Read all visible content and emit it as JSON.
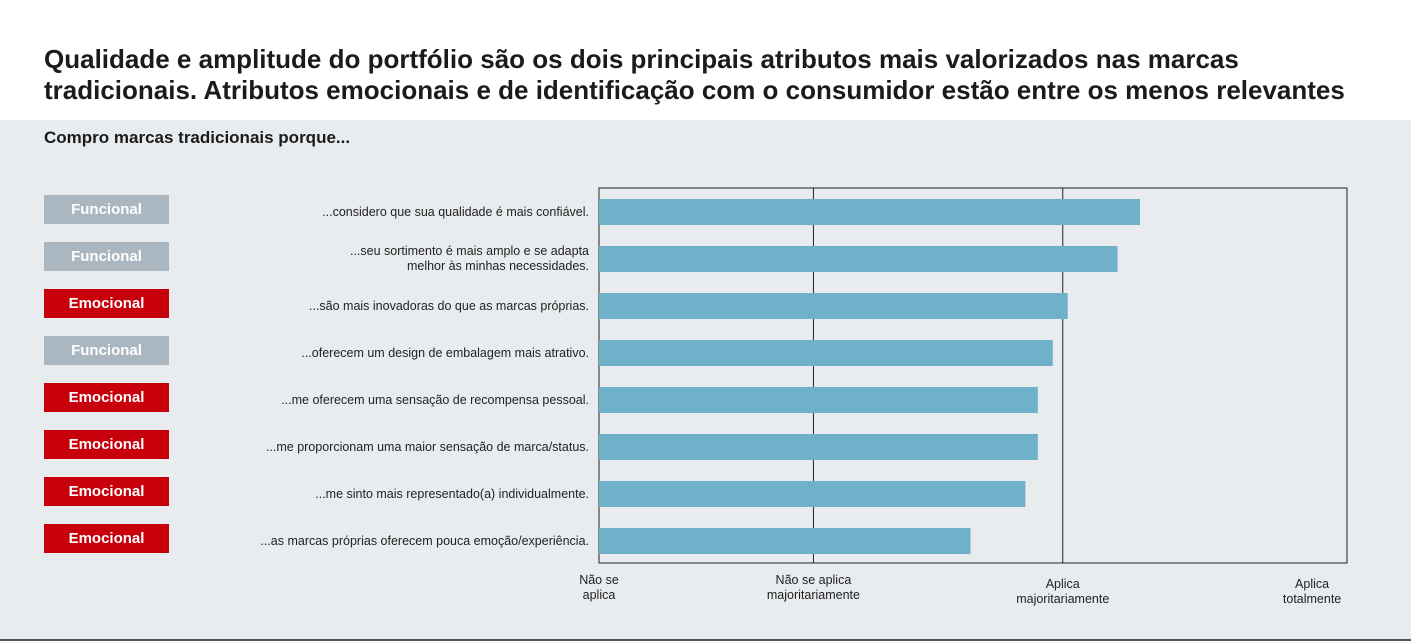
{
  "title_line1": "Qualidade e amplitude do portfólio são os dois principais atributos mais valorizados nas marcas",
  "title_line2": "tradicionais. Atributos emocionais e de identificação com o consumidor estão entre os menos relevantes",
  "colors": {
    "bar": "#6fb1c8",
    "funcional": "#aab7c0",
    "emocional": "#c8000b",
    "panel": "#e9ecef"
  },
  "chart_data": {
    "type": "bar",
    "orientation": "horizontal",
    "title": "Compro marcas tradicionais porque...",
    "categories": [
      "...considero que sua qualidade é mais confiável.",
      "...seu sortimento é mais amplo e se adapta\nmelhor às minhas necessidades.",
      "...são mais inovadoras do que as marcas próprias.",
      "...oferecem um design de embalagem mais atrativo.",
      "...me oferecem uma sensação de recompensa pessoal.",
      "...me proporcionam uma maior sensação de marca/status.",
      "...me sinto mais representado(a) individualmente.",
      "...as marcas próprias oferecem pouca emoção/experiência."
    ],
    "tags": [
      "Funcional",
      "Funcional",
      "Emocional",
      "Funcional",
      "Emocional",
      "Emocional",
      "Emocional",
      "Emocional"
    ],
    "values": [
      2.17,
      2.08,
      1.88,
      1.82,
      1.76,
      1.76,
      1.71,
      1.49
    ],
    "xlim": [
      0,
      3
    ],
    "x_ticks": [
      0,
      0.86,
      1.86,
      2.86
    ],
    "tick_labels": [
      "Não se\naplica",
      "Não se aplica\nmajoritariamente",
      "Aplica\nmajoritariamente",
      "Aplica\ntotalmente"
    ],
    "gridlines": [
      0.86,
      1.86
    ]
  }
}
